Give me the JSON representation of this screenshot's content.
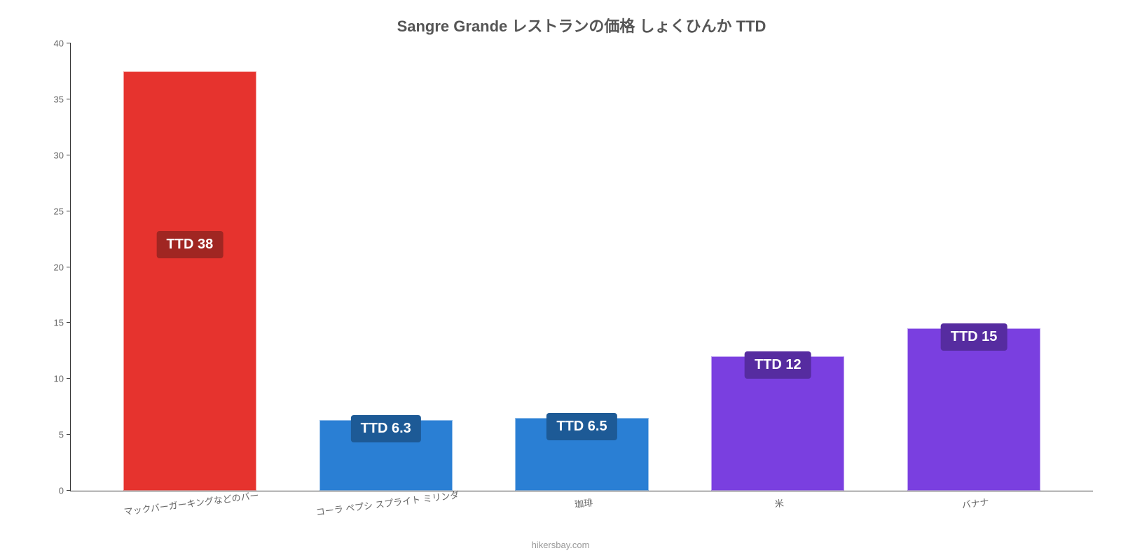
{
  "chart": {
    "type": "bar",
    "title": "Sangre Grande レストランの価格 しょくひんか TTD",
    "title_fontsize": 22,
    "title_color": "#555555",
    "ylim": [
      0,
      40
    ],
    "ytick_step": 5,
    "yticks": [
      0,
      5,
      10,
      15,
      20,
      25,
      30,
      35,
      40
    ],
    "ytick_fontsize": 13,
    "ytick_color": "#666666",
    "background_color": "#ffffff",
    "axis_color": "#333333",
    "bar_width_pct": 68,
    "xlabel_fontsize": 13,
    "xlabel_color": "#666666",
    "xlabel_rotation_deg": -7,
    "value_label_fontsize": 20,
    "value_label_text_color": "#ffffff",
    "footer": "hikersbay.com",
    "footer_color": "#999999",
    "footer_fontsize": 13,
    "categories": [
      "マックバーガーキングなどのバー",
      "コーラ ペプシ スプライト ミリンダ",
      "珈琲",
      "米",
      "バナナ"
    ],
    "values": [
      37.5,
      6.3,
      6.5,
      12,
      14.5
    ],
    "display_values": [
      "TTD 38",
      "TTD 6.3",
      "TTD 6.5",
      "TTD 12",
      "TTD 15"
    ],
    "bar_colors": [
      "#e6332e",
      "#2a7fd4",
      "#2a7fd4",
      "#7a3fe0",
      "#7a3fe0"
    ],
    "badge_colors": [
      "#a02622",
      "#1d5a96",
      "#1d5a96",
      "#562ca0",
      "#562ca0"
    ]
  }
}
